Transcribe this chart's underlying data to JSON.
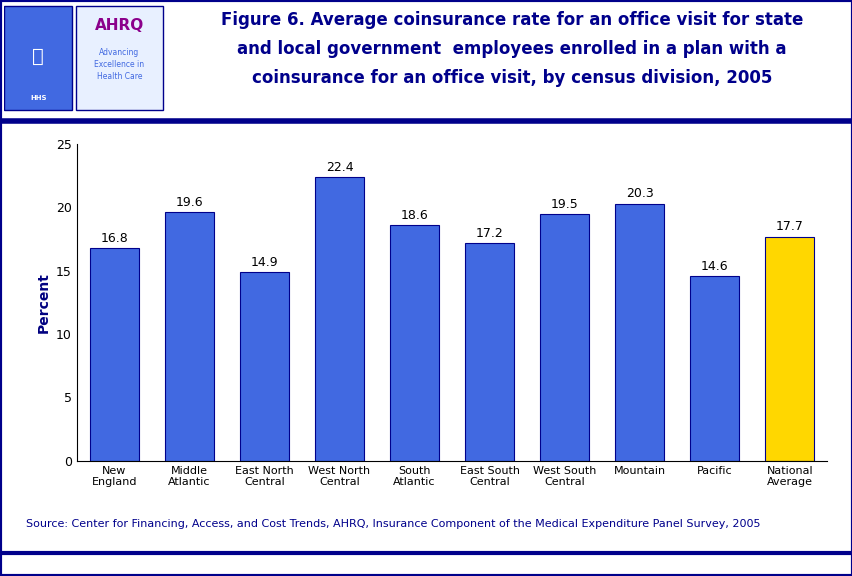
{
  "categories": [
    "New\nEngland",
    "Middle\nAtlantic",
    "East North\nCentral",
    "West North\nCentral",
    "South\nAtlantic",
    "East South\nCentral",
    "West South\nCentral",
    "Mountain",
    "Pacific",
    "National\nAverage"
  ],
  "values": [
    16.8,
    19.6,
    14.9,
    22.4,
    18.6,
    17.2,
    19.5,
    20.3,
    14.6,
    17.7
  ],
  "bar_colors": [
    "#4169E1",
    "#4169E1",
    "#4169E1",
    "#4169E1",
    "#4169E1",
    "#4169E1",
    "#4169E1",
    "#4169E1",
    "#4169E1",
    "#FFD700"
  ],
  "bar_hatch_color": "#6A8FEF",
  "title_line1": "Figure 6. Average coinsurance rate for an office visit for state",
  "title_line2": "and local government  employees enrolled in a plan with a",
  "title_line3": "coinsurance for an office visit, by census division, 2005",
  "ylabel": "Percent",
  "ylim": [
    0,
    25
  ],
  "yticks": [
    0,
    5,
    10,
    15,
    20,
    25
  ],
  "source_text": "Source: Center for Financing, Access, and Cost Trends, AHRQ, Insurance Component of the Medical Expenditure Panel Survey, 2005",
  "title_color": "#00008B",
  "bar_edge_color": "#00008B",
  "background_color": "#FFFFFF",
  "divider_color": "#00008B",
  "outer_border_color": "#00008B",
  "ylabel_color": "#000080",
  "value_label_color": "#FFFFFF",
  "value_fontsize": 9,
  "title_fontsize": 12,
  "source_fontsize": 8,
  "ylabel_fontsize": 10,
  "xtick_fontsize": 8,
  "ytick_fontsize": 9
}
